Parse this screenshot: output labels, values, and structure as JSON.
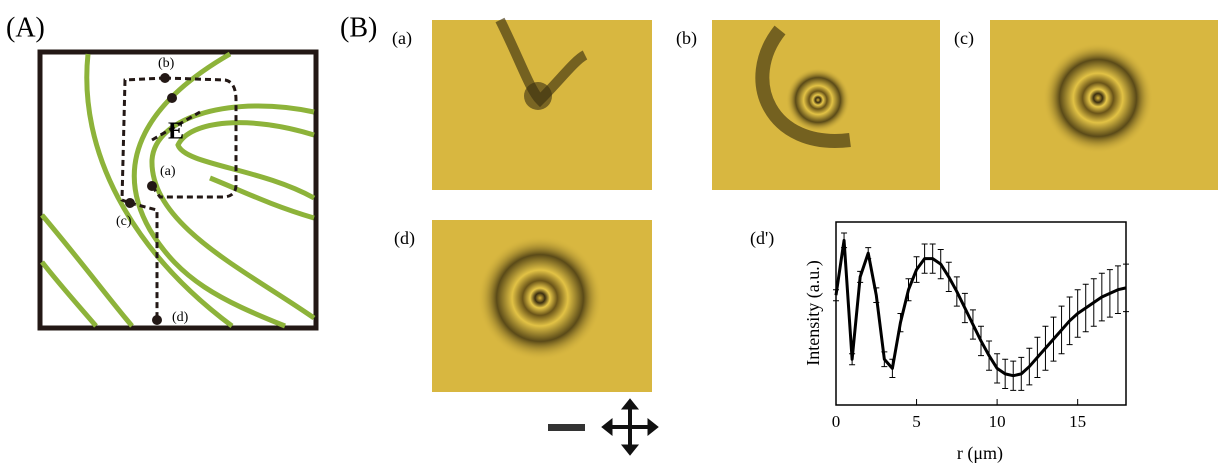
{
  "panel_a": {
    "label": "(A)",
    "defect": "E",
    "points": [
      "(a)",
      "(b)",
      "(c)",
      "(d)"
    ]
  },
  "panel_b": {
    "label": "(B)",
    "images": [
      "(a)",
      "(b)",
      "(c)",
      "(d)"
    ]
  },
  "chart_data": {
    "type": "line",
    "panel_label": "(d')",
    "x_label": "r (μm)",
    "y_label": "Intensity (a.u.)",
    "xlim": [
      0,
      18
    ],
    "xticks": [
      0,
      5,
      10,
      15
    ],
    "ylim": [
      0,
      1
    ],
    "x": [
      0,
      0.5,
      1,
      1.5,
      2,
      2.5,
      3,
      3.5,
      4,
      4.5,
      5,
      5.5,
      6,
      6.5,
      7,
      7.5,
      8,
      8.5,
      9,
      9.5,
      10,
      10.5,
      11,
      11.5,
      12,
      12.5,
      13,
      13.5,
      14,
      14.5,
      15,
      15.5,
      16,
      16.5,
      17,
      17.5,
      18
    ],
    "series": [
      {
        "color": "#000000",
        "values": [
          0.6,
          0.9,
          0.25,
          0.7,
          0.83,
          0.6,
          0.25,
          0.2,
          0.45,
          0.63,
          0.74,
          0.8,
          0.8,
          0.77,
          0.7,
          0.62,
          0.53,
          0.44,
          0.35,
          0.27,
          0.2,
          0.17,
          0.16,
          0.17,
          0.21,
          0.26,
          0.31,
          0.36,
          0.41,
          0.46,
          0.5,
          0.53,
          0.56,
          0.59,
          0.61,
          0.63,
          0.64
        ],
        "errors": [
          0.03,
          0.04,
          0.03,
          0.03,
          0.03,
          0.04,
          0.04,
          0.05,
          0.05,
          0.06,
          0.07,
          0.08,
          0.08,
          0.08,
          0.08,
          0.08,
          0.08,
          0.08,
          0.08,
          0.08,
          0.08,
          0.08,
          0.08,
          0.09,
          0.1,
          0.11,
          0.12,
          0.12,
          0.13,
          0.13,
          0.13,
          0.13,
          0.13,
          0.13,
          0.13,
          0.13,
          0.13
        ]
      }
    ]
  }
}
